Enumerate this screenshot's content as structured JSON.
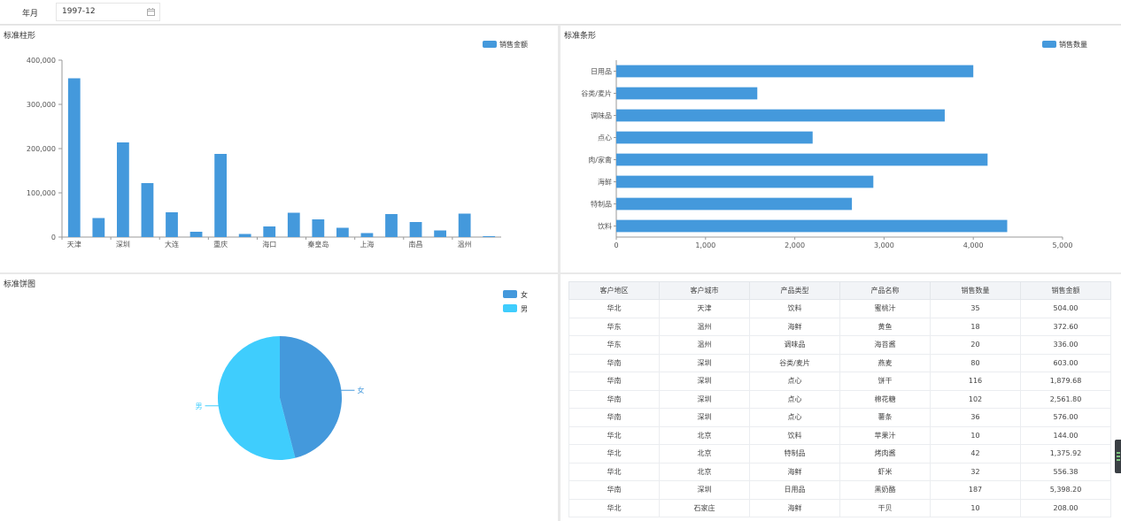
{
  "filter": {
    "label": "年月",
    "value": "1997-12"
  },
  "colors": {
    "bar": "#4499dc",
    "female": "#4499dc",
    "male": "#3fcdfd",
    "axis": "#999999",
    "grid": "#e5e5e5"
  },
  "bar_panel": {
    "title": "标准柱形"
  },
  "hbar_panel": {
    "title": "标准条形"
  },
  "pie_panel": {
    "title": "标准饼图"
  },
  "table_panel": {
    "columns": [
      "客户地区",
      "客户城市",
      "产品类型",
      "产品名称",
      "销售数量",
      "销售金额"
    ],
    "rows": [
      [
        "华北",
        "天津",
        "饮料",
        "蜜桃汁",
        "35",
        "504.00"
      ],
      [
        "华东",
        "温州",
        "海鲜",
        "黄鱼",
        "18",
        "372.60"
      ],
      [
        "华东",
        "温州",
        "调味品",
        "海苔酱",
        "20",
        "336.00"
      ],
      [
        "华南",
        "深圳",
        "谷类/麦片",
        "燕麦",
        "80",
        "603.00"
      ],
      [
        "华南",
        "深圳",
        "点心",
        "饼干",
        "116",
        "1,879.68"
      ],
      [
        "华南",
        "深圳",
        "点心",
        "棉花糖",
        "102",
        "2,561.80"
      ],
      [
        "华南",
        "深圳",
        "点心",
        "薯条",
        "36",
        "576.00"
      ],
      [
        "华北",
        "北京",
        "饮料",
        "苹果汁",
        "10",
        "144.00"
      ],
      [
        "华北",
        "北京",
        "特制品",
        "烤肉酱",
        "42",
        "1,375.92"
      ],
      [
        "华北",
        "北京",
        "海鲜",
        "虾米",
        "32",
        "556.38"
      ],
      [
        "华南",
        "深圳",
        "日用品",
        "黑奶酪",
        "187",
        "5,398.20"
      ],
      [
        "华北",
        "石家庄",
        "海鲜",
        "干贝",
        "10",
        "208.00"
      ]
    ]
  },
  "chart_data": [
    {
      "type": "bar",
      "legend": "销售金额",
      "legend_position": "top-right",
      "tick_labels_x": [
        "天津",
        "深圳",
        "大连",
        "重庆",
        "海口",
        "秦皇岛",
        "上海",
        "南昌",
        "温州"
      ],
      "label_every": 2,
      "values": [
        359000,
        43000,
        214000,
        122000,
        56000,
        12000,
        188000,
        7000,
        24000,
        55000,
        40000,
        21000,
        9000,
        52000,
        34000,
        15000,
        53000,
        2000
      ],
      "yticks": [
        "0",
        "100,000",
        "200,000",
        "300,000",
        "400,000"
      ],
      "ylim": [
        0,
        400000
      ],
      "series": [
        {
          "name": "销售金额"
        }
      ]
    },
    {
      "type": "bar",
      "orientation": "horizontal",
      "legend": "销售数量",
      "legend_position": "top-right",
      "categories": [
        "日用品",
        "谷类/麦片",
        "调味品",
        "点心",
        "肉/家禽",
        "海鲜",
        "特制品",
        "饮料"
      ],
      "values": [
        4000,
        1580,
        3680,
        2200,
        4160,
        2880,
        2640,
        4380
      ],
      "xticks": [
        "0",
        "1,000",
        "2,000",
        "3,000",
        "4,000",
        "5,000"
      ],
      "xlim": [
        0,
        5000
      ],
      "series": [
        {
          "name": "销售数量"
        }
      ]
    },
    {
      "type": "pie",
      "legend_position": "top-right",
      "categories": [
        "女",
        "男"
      ],
      "values": [
        0.46,
        0.54
      ]
    }
  ]
}
